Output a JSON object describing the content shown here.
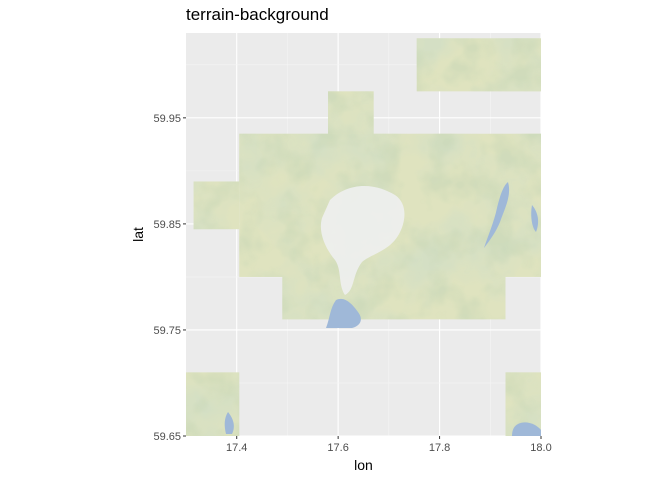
{
  "title": "terrain-background",
  "colors": {
    "panel_background": "#ebebeb",
    "grid_major": "#ffffff",
    "grid_minor": "#f5f5f5",
    "terrain_light": "#dfe3bf",
    "terrain_green": "#a8bd8b",
    "terrain_dark": "#8fae76",
    "urban": "#eef0f0",
    "water": "#9fb8d8"
  },
  "chart_data": {
    "type": "map",
    "title": "terrain-background",
    "xlabel": "lon",
    "ylabel": "lat",
    "xlim": [
      17.3,
      18.0
    ],
    "ylim": [
      59.65,
      60.03
    ],
    "x_ticks": [
      17.4,
      17.6,
      17.8,
      18.0
    ],
    "x_tick_labels": [
      "17.4",
      "17.6",
      "17.8",
      "18.0"
    ],
    "y_ticks": [
      59.65,
      59.75,
      59.85,
      59.95
    ],
    "y_tick_labels": [
      "59.65",
      "59.75",
      "59.85",
      "59.95"
    ],
    "grid": true,
    "tiles": [
      {
        "name": "tile-northeast",
        "lon": [
          17.755,
          18.0
        ],
        "lat": [
          59.975,
          60.025
        ]
      },
      {
        "name": "tile-north-center",
        "lon": [
          17.58,
          17.67
        ],
        "lat": [
          59.885,
          59.975
        ]
      },
      {
        "name": "tile-center-main",
        "lon": [
          17.405,
          18.0
        ],
        "lat": [
          59.8,
          59.935
        ]
      },
      {
        "name": "tile-west-wing",
        "lon": [
          17.315,
          17.405
        ],
        "lat": [
          59.845,
          59.89
        ]
      },
      {
        "name": "tile-south-center",
        "lon": [
          17.49,
          17.93
        ],
        "lat": [
          59.76,
          59.805
        ]
      },
      {
        "name": "tile-southwest",
        "lon": [
          17.3,
          17.405
        ],
        "lat": [
          59.65,
          59.71
        ]
      },
      {
        "name": "tile-southeast",
        "lon": [
          17.93,
          18.0
        ],
        "lat": [
          59.65,
          59.71
        ]
      }
    ]
  }
}
